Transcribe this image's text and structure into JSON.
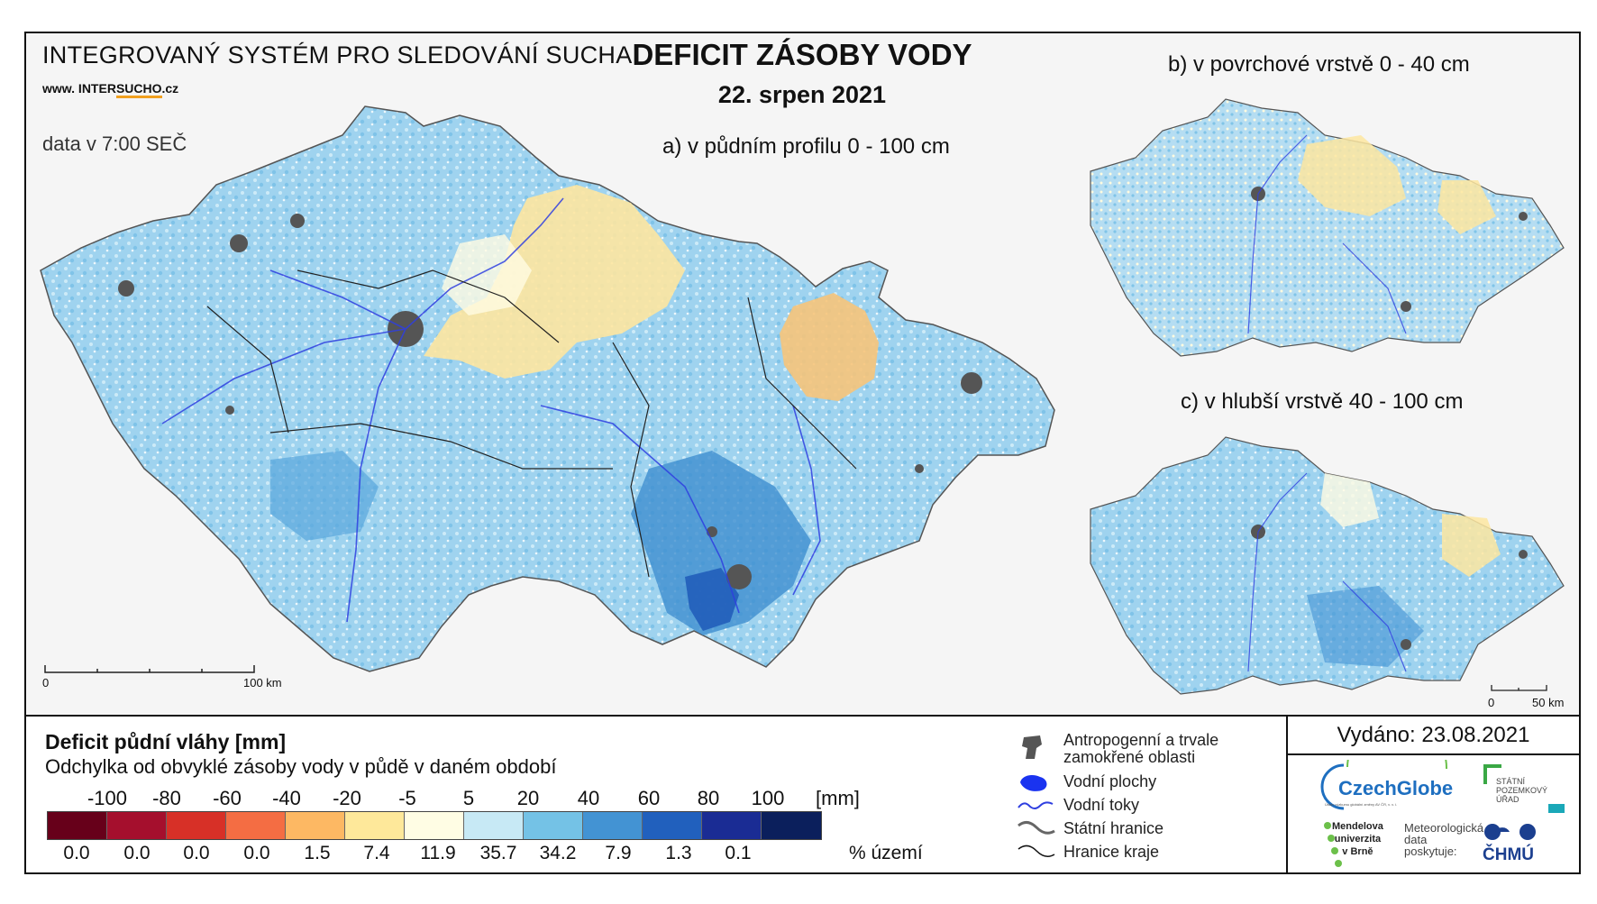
{
  "header": {
    "system_title": "INTEGROVANÝ SYSTÉM PRO SLEDOVÁNÍ SUCHA",
    "website_prefix": "www. INTER",
    "website_highlight": "SUCHO",
    "website_suffix": ".cz",
    "data_time": "data v 7:00 SEČ",
    "main_title": "DEFICIT ZÁSOBY VODY",
    "date": "22. srpen 2021"
  },
  "maps": {
    "a_label": "a) v půdním profilu 0 - 100 cm",
    "b_label": "b) v povrchové vrstvě 0 - 40 cm",
    "c_label": "c) v hlubší vrstvě 40 - 100 cm",
    "scale_main": {
      "zero": "0",
      "end": "100 km"
    },
    "scale_small": {
      "zero": "0",
      "end": "50 km"
    }
  },
  "legend": {
    "title": "Deficit půdní vláhy  [mm]",
    "subtitle": "Odchylka od obvyklé zásoby vody v půdě v daném období",
    "ticks": [
      "-100",
      "-80",
      "-60",
      "-40",
      "-20",
      "-5",
      "5",
      "20",
      "40",
      "60",
      "80",
      "100"
    ],
    "unit": "[mm]",
    "colors": [
      "#67001a",
      "#a50f2d",
      "#d73027",
      "#f46d43",
      "#fdb863",
      "#fee89a",
      "#fffde4",
      "#c7e9f5",
      "#74c2e6",
      "#4393d3",
      "#2160bd",
      "#1a2c94",
      "#0b1f5c"
    ],
    "percentages": [
      "0.0",
      "0.0",
      "0.0",
      "0.0",
      "1.5",
      "7.4",
      "11.9",
      "35.7",
      "34.2",
      "7.9",
      "1.3",
      "0.1"
    ],
    "pct_unit": "% území"
  },
  "symbols": {
    "anthropogenic_line1": "Antropogenní a trvale",
    "anthropogenic_line2": "zamokřené oblasti",
    "water_bodies": "Vodní plochy",
    "water_streams": "Vodní toky",
    "state_border": "Státní hranice",
    "region_border": "Hranice kraje",
    "icons": [
      "urban-area-icon",
      "water-body-icon",
      "stream-icon",
      "state-border-icon",
      "region-border-icon"
    ]
  },
  "issued": "Vydáno: 23.08.2021",
  "logos": {
    "czechglobe": "CzechGlobe",
    "czechglobe_sub": "Ústav výzkumu globální změny AV ČR, v. v. i.",
    "spu_line1": "STÁTNÍ",
    "spu_line2": "POZEMKOVÝ",
    "spu_line3": "ÚŘAD",
    "mendelu_line1": "Mendelova",
    "mendelu_line2": "univerzita",
    "mendelu_line3": "v Brně",
    "meteo_line1": "Meteorologická",
    "meteo_line2": "data",
    "meteo_line3": "poskytuje:",
    "chmu": "ČHMÚ"
  }
}
